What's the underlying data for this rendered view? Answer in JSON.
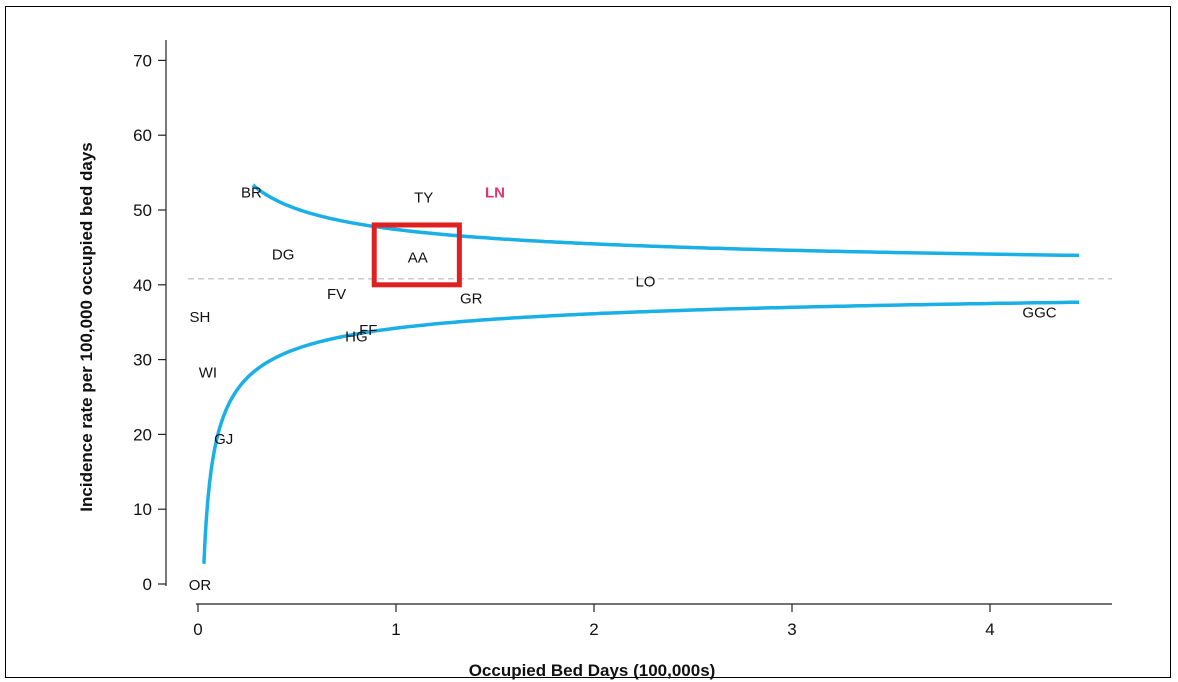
{
  "chart_data": {
    "type": "scatter",
    "title": "",
    "xlabel": "Occupied Bed Days (100,000s)",
    "ylabel": "Incidence rate per 100,000 occupied bed days",
    "xlim": [
      -0.15,
      4.6
    ],
    "ylim": [
      -2,
      74
    ],
    "xticks": [
      0,
      1,
      2,
      3,
      4
    ],
    "yticks": [
      0,
      10,
      20,
      30,
      40,
      50,
      60,
      70
    ],
    "grid": false,
    "mean_line": {
      "value": 40.8,
      "color": "#bbbbbb",
      "style": "dashed"
    },
    "control_limits": {
      "color": "#1ab0e6",
      "mean": 40.8,
      "multiplier": 6.6,
      "x_range_upper": [
        0.28,
        4.45
      ],
      "x_range_lower": [
        0.03,
        4.45
      ]
    },
    "points": [
      {
        "label": "BR",
        "x": 0.27,
        "y": 52.5,
        "color": "#111111"
      },
      {
        "label": "TY",
        "x": 1.14,
        "y": 51.8,
        "color": "#111111"
      },
      {
        "label": "LN",
        "x": 1.5,
        "y": 52.5,
        "color": "#e0356a"
      },
      {
        "label": "DG",
        "x": 0.43,
        "y": 44.2,
        "color": "#111111"
      },
      {
        "label": "AA",
        "x": 1.11,
        "y": 43.8,
        "color": "#111111"
      },
      {
        "label": "LO",
        "x": 2.26,
        "y": 40.6,
        "color": "#111111"
      },
      {
        "label": "FV",
        "x": 0.7,
        "y": 38.9,
        "color": "#111111"
      },
      {
        "label": "GR",
        "x": 1.38,
        "y": 38.3,
        "color": "#111111"
      },
      {
        "label": "SH",
        "x": 0.01,
        "y": 35.8,
        "color": "#111111"
      },
      {
        "label": "GGC",
        "x": 4.25,
        "y": 36.4,
        "color": "#111111"
      },
      {
        "label": "FF",
        "x": 0.86,
        "y": 34.1,
        "color": "#111111"
      },
      {
        "label": "HG",
        "x": 0.8,
        "y": 33.2,
        "color": "#111111"
      },
      {
        "label": "WI",
        "x": 0.05,
        "y": 28.4,
        "color": "#111111"
      },
      {
        "label": "GJ",
        "x": 0.13,
        "y": 19.5,
        "color": "#111111"
      },
      {
        "label": "OR",
        "x": 0.01,
        "y": 0,
        "color": "#111111"
      }
    ],
    "highlight": {
      "label": "AA",
      "x_range": [
        0.89,
        1.32
      ],
      "y_range": [
        40,
        48
      ],
      "color": "#e02020"
    }
  }
}
